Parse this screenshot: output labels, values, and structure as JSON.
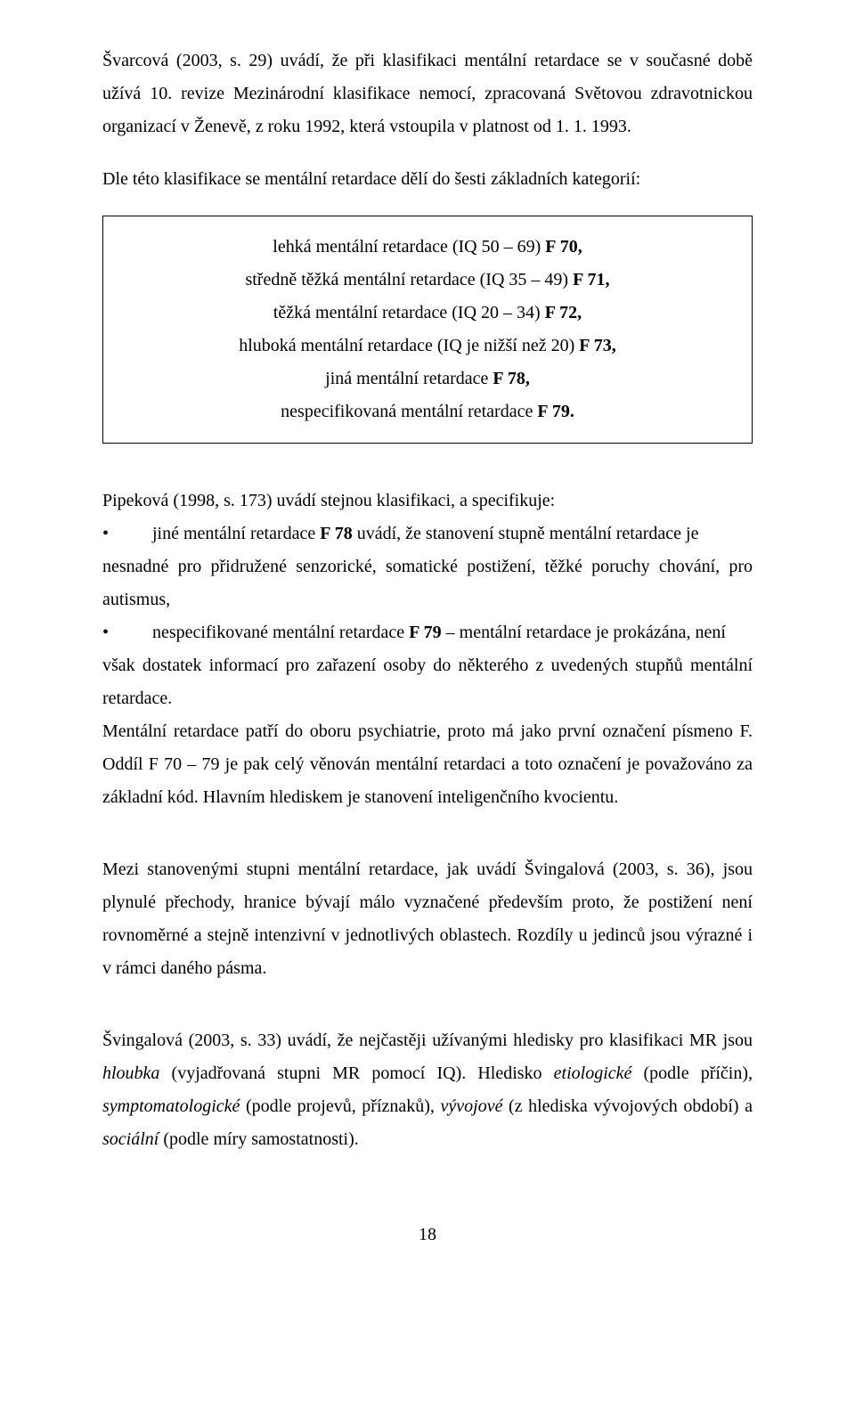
{
  "p1": "Švarcová (2003, s. 29) uvádí, že při klasifikaci mentální retardace se v současné době užívá 10. revize Mezinárodní klasifikace nemocí, zpracovaná Světovou zdravotnickou organizací v Ženevě, z roku 1992, která vstoupila v platnost od 1. 1. 1993.",
  "p2": "Dle této klasifikace se mentální retardace dělí do šesti základních kategorií:",
  "box": {
    "l1a": "lehká mentální retardace (IQ 50 – 69) ",
    "l1b": "F 70,",
    "l2a": "středně těžká mentální retardace (IQ 35 – 49) ",
    "l2b": "F 71,",
    "l3a": "těžká mentální retardace  (IQ 20 – 34) ",
    "l3b": "F 72,",
    "l4a": "hluboká mentální retardace (IQ je nižší než 20) ",
    "l4b": "F 73,",
    "l5a": "jiná mentální retardace  ",
    "l5b": "F 78,",
    "l6a": "nespecifikovaná mentální retardace ",
    "l6b": "F 79."
  },
  "p3": "Pipeková (1998, s. 173) uvádí stejnou klasifikaci, a specifikuje:",
  "bullets": {
    "b1": "jiné mentální retardace F 78 uvádí, že stanovení stupně mentální retardace je",
    "b1_bold": "F 78",
    "b1_pre": "jiné mentální retardace ",
    "b1_post": " uvádí, že stanovení stupně mentální retardace je",
    "b1_cont": "nesnadné pro přidružené senzorické, somatické postižení, těžké poruchy chování, pro autismus,",
    "b2_pre": "nespecifikované mentální retardace ",
    "b2_bold": "F 79",
    "b2_post": " – mentální retardace je prokázána, není",
    "b2_cont": "však dostatek informací pro zařazení osoby do některého z uvedených stupňů mentální retardace."
  },
  "p4": "Mentální retardace patří do oboru psychiatrie, proto má jako první označení písmeno F. Oddíl F 70 – 79 je pak celý věnován mentální retardaci a toto označení je považováno za základní kód. Hlavním hlediskem je stanovení inteligenčního kvocientu.",
  "p5": "Mezi stanovenými stupni mentální retardace, jak uvádí Švingalová (2003, s. 36), jsou plynulé přechody, hranice bývají málo vyznačené především proto, že postižení není rovnoměrné a stejně intenzivní v jednotlivých oblastech. Rozdíly u jedinců jsou výrazné i v rámci daného pásma.",
  "p6_a": "Švingalová (2003, s. 33)  uvádí, že nejčastěji užívanými hledisky pro klasifikaci MR jsou ",
  "p6_i1": "hloubka",
  "p6_b": " (vyjadřovaná stupni MR pomocí IQ). Hledisko ",
  "p6_i2": "etiologické",
  "p6_c": " (podle příčin), ",
  "p6_i3": "symptomatologické",
  "p6_d": " (podle projevů, příznaků), ",
  "p6_i4": "vývojové",
  "p6_e": " (z hlediska vývojových období) a  ",
  "p6_i5": "sociální",
  "p6_f": " (podle míry samostatnosti).",
  "pagenum": "18"
}
